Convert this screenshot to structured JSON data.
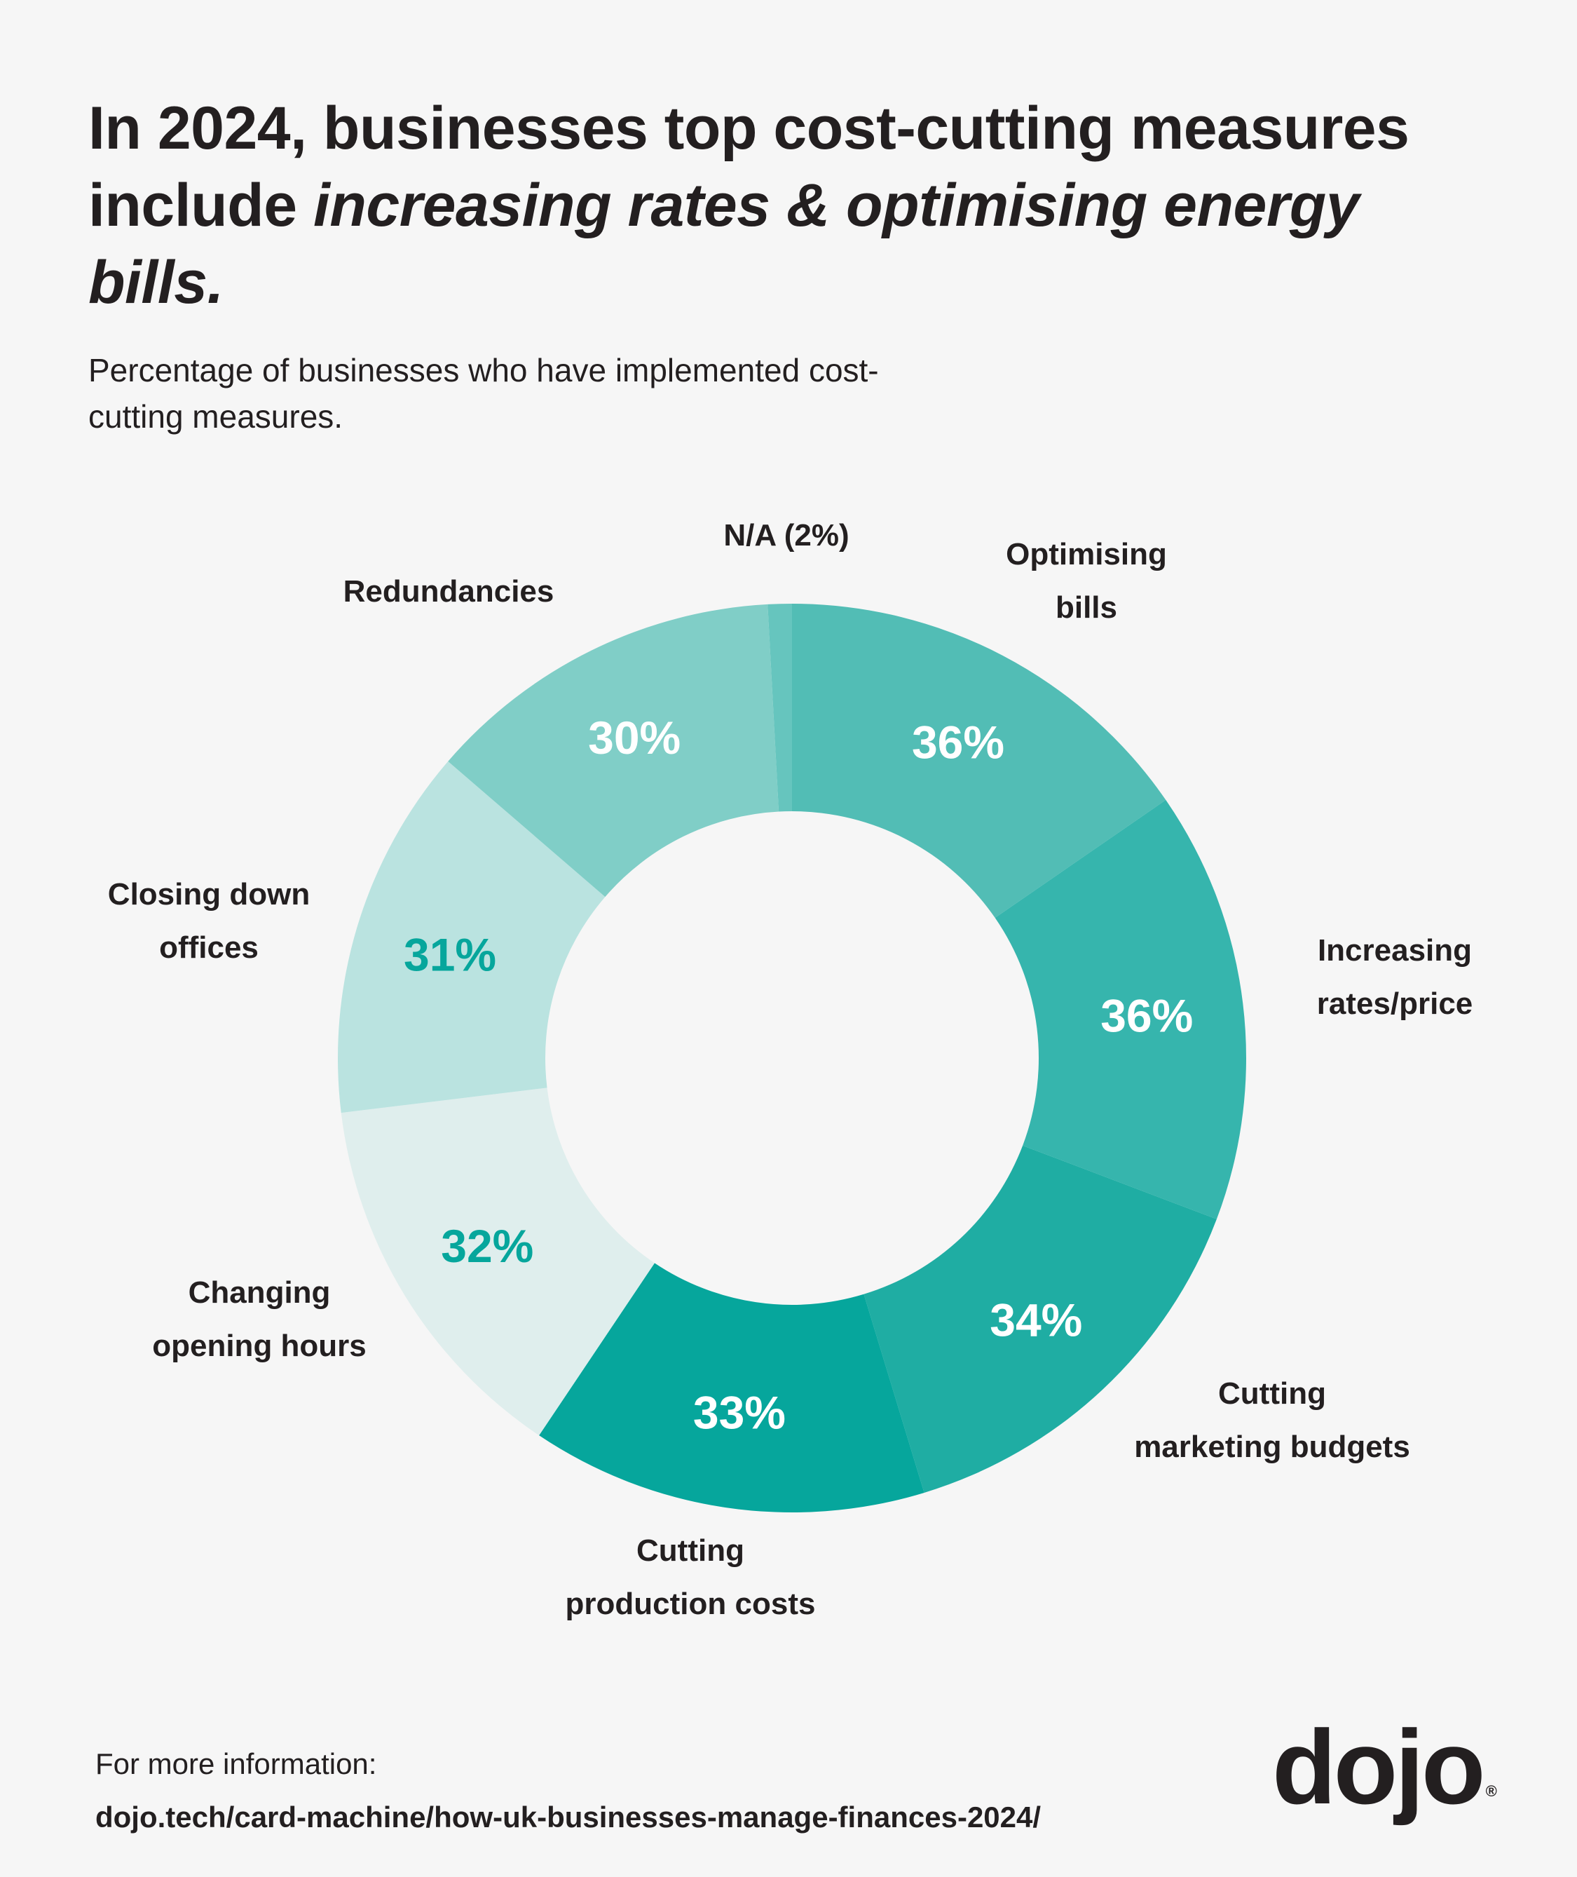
{
  "header": {
    "title_parts": [
      {
        "text": "In 2024, businesses top cost-cutting measures include ",
        "italic": false
      },
      {
        "text": "increasing rates & optimising energy bills.",
        "italic": true
      }
    ],
    "subtitle": "Percentage of businesses who have implemented cost-cutting measures."
  },
  "chart_data": {
    "type": "pie",
    "variant": "donut",
    "title": "In 2024, businesses top cost-cutting measures include increasing rates & optimising energy bills.",
    "subtitle": "Percentage of businesses who have implemented cost-cutting measures.",
    "unit": "%",
    "start": "top",
    "direction": "clockwise",
    "categories": [
      "Optimising bills",
      "Increasing rates/price",
      "Cutting marketing budgets",
      "Cutting production costs",
      "Changing opening hours",
      "Closing down offices",
      "Redundancies",
      "N/A"
    ],
    "values": [
      36,
      36,
      34,
      33,
      32,
      31,
      30,
      2
    ],
    "value_labels": [
      "36%",
      "36%",
      "34%",
      "33%",
      "32%",
      "31%",
      "30%",
      ""
    ],
    "category_labels": [
      [
        "Optimising",
        "bills"
      ],
      [
        "Increasing",
        "rates/price"
      ],
      [
        "Cutting",
        "marketing budgets"
      ],
      [
        "Cutting",
        "production costs"
      ],
      [
        "Changing",
        "opening hours"
      ],
      [
        "Closing down",
        "offices"
      ],
      [
        "Redundancies"
      ],
      [
        "N/A (2%)"
      ]
    ],
    "colors": [
      "#52BDB5",
      "#36B5AD",
      "#1FADA3",
      "#06A69C",
      "#DFEEED",
      "#BAE3E0",
      "#80CEC7",
      "#66C5BE"
    ],
    "value_label_colors": [
      "#FFFFFF",
      "#FFFFFF",
      "#FFFFFF",
      "#FFFFFF",
      "#06A69C",
      "#06A69C",
      "#FFFFFF",
      "#FFFFFF"
    ],
    "legend": "none"
  },
  "footer": {
    "info_label": "For more information:",
    "link": "dojo.tech/card-machine/how-uk-businesses-manage-finances-2024/"
  },
  "brand": {
    "logo_text": "dojo",
    "registered_mark": "®"
  },
  "colors": {
    "background": "#F6F6F6",
    "text": "#231F20",
    "accent": "#06A69C"
  }
}
